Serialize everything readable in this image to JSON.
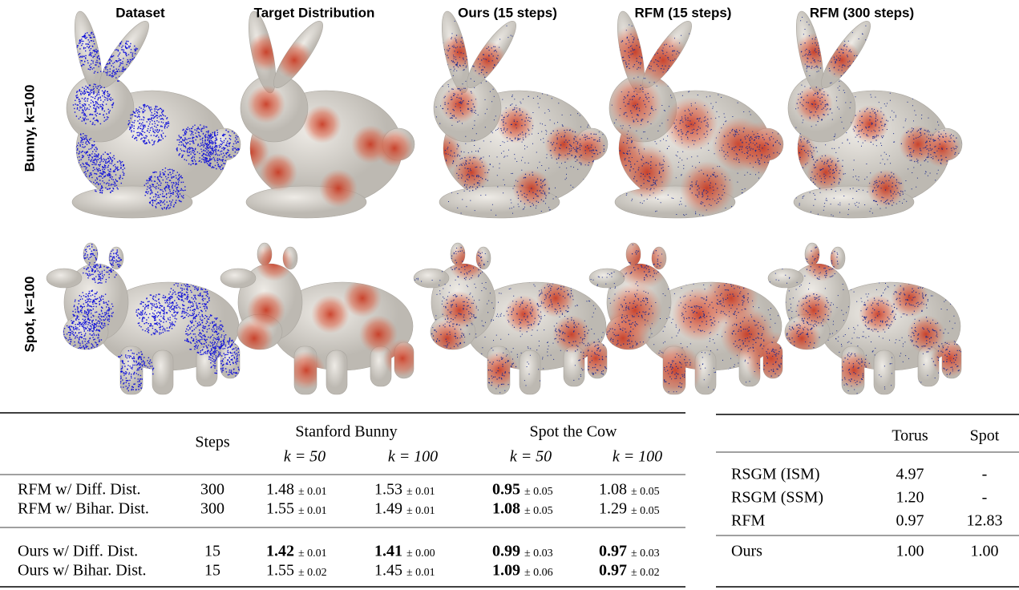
{
  "figure": {
    "column_titles": [
      "Dataset",
      "Target Distribution",
      "Ours (15 steps)",
      "RFM (15 steps)",
      "RFM (300 steps)"
    ],
    "row_labels": [
      "Bunny,  k=100",
      "Spot,  k=100"
    ]
  },
  "table1": {
    "steps_header": "Steps",
    "groups": [
      "Stanford Bunny",
      "Spot the Cow"
    ],
    "subheaders": [
      "k = 50",
      "k = 100",
      "k = 50",
      "k = 100"
    ],
    "rows": [
      {
        "method": "RFM w/ Diff. Dist.",
        "steps": "300",
        "cells": [
          {
            "value": "1.48",
            "std": "± 0.01",
            "bold": false
          },
          {
            "value": "1.53",
            "std": "± 0.01",
            "bold": false
          },
          {
            "value": "0.95",
            "std": "± 0.05",
            "bold": true
          },
          {
            "value": "1.08",
            "std": "± 0.05",
            "bold": false
          }
        ]
      },
      {
        "method": "RFM w/ Bihar. Dist.",
        "steps": "300",
        "cells": [
          {
            "value": "1.55",
            "std": "± 0.01",
            "bold": false
          },
          {
            "value": "1.49",
            "std": "± 0.01",
            "bold": false
          },
          {
            "value": "1.08",
            "std": "± 0.05",
            "bold": true
          },
          {
            "value": "1.29",
            "std": "± 0.05",
            "bold": false
          }
        ]
      },
      {
        "method": "Ours w/ Diff. Dist.",
        "steps": "15",
        "cells": [
          {
            "value": "1.42",
            "std": "± 0.01",
            "bold": true
          },
          {
            "value": "1.41",
            "std": "± 0.00",
            "bold": true
          },
          {
            "value": "0.99",
            "std": "± 0.03",
            "bold": true
          },
          {
            "value": "0.97",
            "std": "± 0.03",
            "bold": true
          }
        ]
      },
      {
        "method": "Ours w/ Bihar. Dist.",
        "steps": "15",
        "cells": [
          {
            "value": "1.55",
            "std": "± 0.02",
            "bold": false
          },
          {
            "value": "1.45",
            "std": "± 0.01",
            "bold": false
          },
          {
            "value": "1.09",
            "std": "± 0.06",
            "bold": true
          },
          {
            "value": "0.97",
            "std": "± 0.02",
            "bold": true
          }
        ]
      }
    ]
  },
  "table2": {
    "headers": [
      "Torus",
      "Spot"
    ],
    "rows": [
      [
        "RSGM (ISM)",
        "4.97",
        "-"
      ],
      [
        "RSGM (SSM)",
        "1.20",
        "-"
      ],
      [
        "RFM",
        "0.97",
        "12.83"
      ],
      [
        "Ours",
        "1.00",
        "1.00"
      ]
    ]
  }
}
